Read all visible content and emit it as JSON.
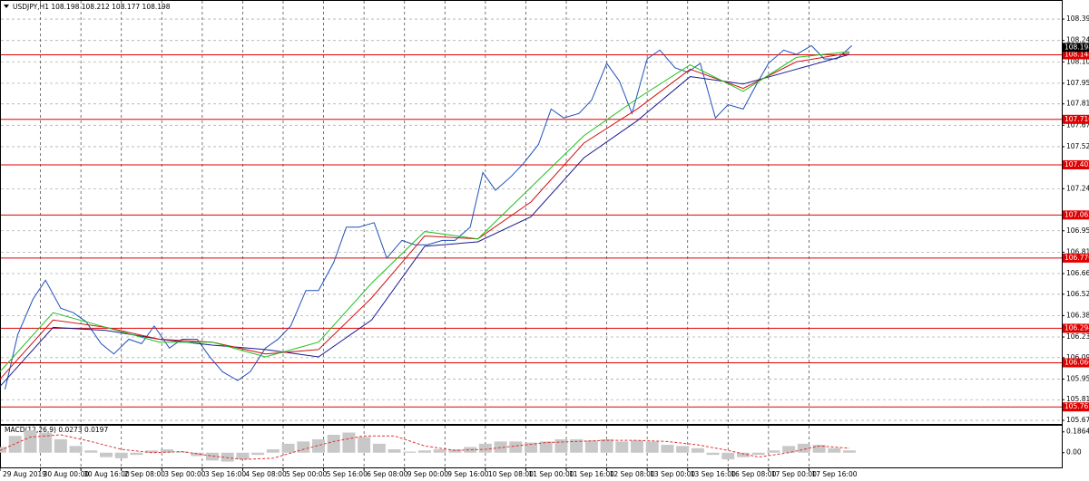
{
  "chart_data": {
    "type": "line",
    "title": "USDJPY,H1  108.198 108.212 108.177 108.198",
    "indicator_title": "MACD(12,26,9) 0.0273 0.0197",
    "xlim": [
      0,
      420
    ],
    "xticks": [
      {
        "value": 0,
        "label": "29 Aug 2019"
      },
      {
        "value": 16,
        "label": "30 Aug 00:00"
      },
      {
        "value": 32,
        "label": "30 Aug 16:00"
      },
      {
        "value": 48,
        "label": "2 Sep 08:00"
      },
      {
        "value": 64,
        "label": "3 Sep 00:00"
      },
      {
        "value": 80,
        "label": "3 Sep 16:00"
      },
      {
        "value": 96,
        "label": "4 Sep 08:00"
      },
      {
        "value": 112,
        "label": "5 Sep 00:00"
      },
      {
        "value": 128,
        "label": "5 Sep 16:00"
      },
      {
        "value": 144,
        "label": "6 Sep 08:00"
      },
      {
        "value": 160,
        "label": "9 Sep 00:00"
      },
      {
        "value": 176,
        "label": "9 Sep 16:00"
      },
      {
        "value": 192,
        "label": "10 Sep 08:00"
      },
      {
        "value": 208,
        "label": "11 Sep 00:00"
      },
      {
        "value": 224,
        "label": "11 Sep 16:00"
      },
      {
        "value": 240,
        "label": "12 Sep 08:00"
      },
      {
        "value": 256,
        "label": "13 Sep 00:00"
      },
      {
        "value": 272,
        "label": "13 Sep 16:00"
      },
      {
        "value": 288,
        "label": "16 Sep 08:00"
      },
      {
        "value": 304,
        "label": "17 Sep 00:00"
      },
      {
        "value": 320,
        "label": "17 Sep 16:00"
      }
    ],
    "ylim": [
      105.658,
      108.507
    ],
    "yticks": [
      {
        "value": 108.39,
        "label": "108.390"
      },
      108.245,
      {
        "value": 108.1,
        "label": "108.100"
      },
      107.955,
      107.815,
      {
        "value": 107.67,
        "label": "107.670"
      },
      107.525,
      {
        "value": 107.24,
        "label": "107.240"
      },
      106.955,
      {
        "value": 106.81,
        "label": "106.810"
      },
      106.665,
      106.525,
      {
        "value": 106.38,
        "label": "106.380"
      },
      106.235,
      106.095,
      {
        "value": 105.95,
        "label": "105.950"
      },
      {
        "value": 105.81,
        "label": "105.810"
      },
      {
        "value": 105.67,
        "label": "105.670"
      }
    ],
    "grid": true,
    "levels": [
      108.148,
      107.71,
      107.402,
      107.062,
      106.77,
      106.294,
      106.06,
      105.761
    ],
    "level_labels": [
      "108.148",
      "107.710",
      "107.402",
      "107.062",
      "106.770",
      "106.294",
      "106.060",
      "105.761"
    ],
    "level_color": "#e00000",
    "last": 108.198,
    "series": [
      {
        "color": "#2050b8",
        "x": [
          2,
          7,
          13,
          18,
          24,
          29,
          34,
          40,
          45,
          51,
          56,
          61,
          67,
          72,
          78,
          83,
          88,
          94,
          99,
          105,
          110,
          115,
          121,
          126,
          132,
          137,
          142,
          148,
          153,
          159,
          164,
          169,
          175,
          180,
          186,
          191,
          196,
          202,
          207,
          213,
          218,
          223,
          229,
          234,
          240,
          245,
          250,
          256,
          261,
          267,
          272,
          277,
          283,
          288,
          294,
          299,
          304,
          310,
          315,
          321,
          326,
          331,
          337
        ],
        "values": [
          105.88,
          106.25,
          106.49,
          106.62,
          106.43,
          106.4,
          106.34,
          106.19,
          106.12,
          106.22,
          106.19,
          106.31,
          106.16,
          106.22,
          106.22,
          106.1,
          106.0,
          105.94,
          106.0,
          106.16,
          106.22,
          106.31,
          106.55,
          106.55,
          106.74,
          106.98,
          106.98,
          107.01,
          106.77,
          106.89,
          106.86,
          106.86,
          106.89,
          106.89,
          106.98,
          107.35,
          107.23,
          107.32,
          107.41,
          107.54,
          107.78,
          107.72,
          107.75,
          107.84,
          108.09,
          107.97,
          107.75,
          108.12,
          108.18,
          108.06,
          108.03,
          108.09,
          107.72,
          107.81,
          107.78,
          107.94,
          108.09,
          108.18,
          108.15,
          108.21,
          108.12,
          108.12,
          108.21
        ]
      },
      {
        "color": "#1a1a8c",
        "x": [
          0,
          21,
          42,
          63,
          84,
          105,
          126,
          147,
          168,
          189,
          210,
          231,
          252,
          273,
          294,
          315,
          336
        ],
        "values": [
          105.9,
          106.3,
          106.28,
          106.22,
          106.18,
          106.15,
          106.1,
          106.35,
          106.85,
          106.88,
          107.05,
          107.45,
          107.7,
          108.0,
          107.95,
          108.05,
          108.15
        ]
      },
      {
        "color": "#d01010",
        "x": [
          0,
          21,
          42,
          63,
          84,
          105,
          126,
          147,
          168,
          189,
          210,
          231,
          252,
          273,
          294,
          315,
          336
        ],
        "values": [
          105.95,
          106.35,
          106.3,
          106.22,
          106.2,
          106.12,
          106.15,
          106.5,
          106.92,
          106.9,
          107.15,
          107.55,
          107.78,
          108.05,
          107.92,
          108.1,
          108.16
        ]
      },
      {
        "color": "#20c020",
        "x": [
          0,
          21,
          42,
          63,
          84,
          105,
          126,
          147,
          168,
          189,
          210,
          231,
          252,
          273,
          294,
          315,
          336
        ],
        "values": [
          106.0,
          106.4,
          106.3,
          106.2,
          106.2,
          106.1,
          106.2,
          106.6,
          106.95,
          106.9,
          107.25,
          107.6,
          107.85,
          108.08,
          107.9,
          108.13,
          108.17
        ]
      }
    ],
    "macd": {
      "ylim": [
        -0.132,
        0.233
      ],
      "yticks": [
        0.1864,
        {
          "value": 0,
          "label": "0.00"
        }
      ],
      "x": [
        0,
        6,
        12,
        18,
        24,
        30,
        36,
        42,
        48,
        54,
        60,
        66,
        72,
        78,
        84,
        90,
        96,
        102,
        108,
        114,
        120,
        126,
        132,
        138,
        144,
        150,
        156,
        162,
        168,
        174,
        180,
        186,
        192,
        198,
        204,
        210,
        216,
        222,
        228,
        234,
        240,
        246,
        252,
        258,
        264,
        270,
        276,
        282,
        288,
        294,
        300,
        306,
        312,
        318,
        324,
        330,
        336
      ],
      "values": [
        0.05,
        0.15,
        0.2,
        0.18,
        0.12,
        0.06,
        0.02,
        -0.04,
        -0.05,
        -0.02,
        0.02,
        0.03,
        0.01,
        -0.03,
        -0.07,
        -0.08,
        -0.06,
        -0.02,
        0.03,
        0.08,
        0.1,
        0.12,
        0.16,
        0.18,
        0.14,
        0.08,
        0.03,
        0.01,
        0.02,
        0.03,
        0.03,
        0.05,
        0.08,
        0.1,
        0.1,
        0.09,
        0.1,
        0.12,
        0.12,
        0.11,
        0.12,
        0.1,
        0.11,
        0.1,
        0.07,
        0.06,
        0.04,
        -0.02,
        -0.06,
        -0.04,
        -0.02,
        0.02,
        0.06,
        0.08,
        0.07,
        0.04,
        0.02
      ],
      "color": "#c8c8c8",
      "signal_x": [
        0,
        12,
        24,
        36,
        48,
        60,
        72,
        84,
        96,
        108,
        120,
        132,
        144,
        156,
        168,
        180,
        192,
        204,
        216,
        228,
        240,
        252,
        264,
        276,
        288,
        300,
        312,
        324,
        336
      ],
      "signal": [
        0.02,
        0.14,
        0.16,
        0.1,
        0.03,
        0.0,
        0.01,
        -0.03,
        -0.06,
        -0.05,
        0.03,
        0.1,
        0.15,
        0.15,
        0.06,
        0.02,
        0.03,
        0.06,
        0.09,
        0.1,
        0.11,
        0.11,
        0.1,
        0.07,
        0.02,
        -0.04,
        0.0,
        0.06,
        0.04
      ],
      "signal_color": "#e03030"
    }
  }
}
